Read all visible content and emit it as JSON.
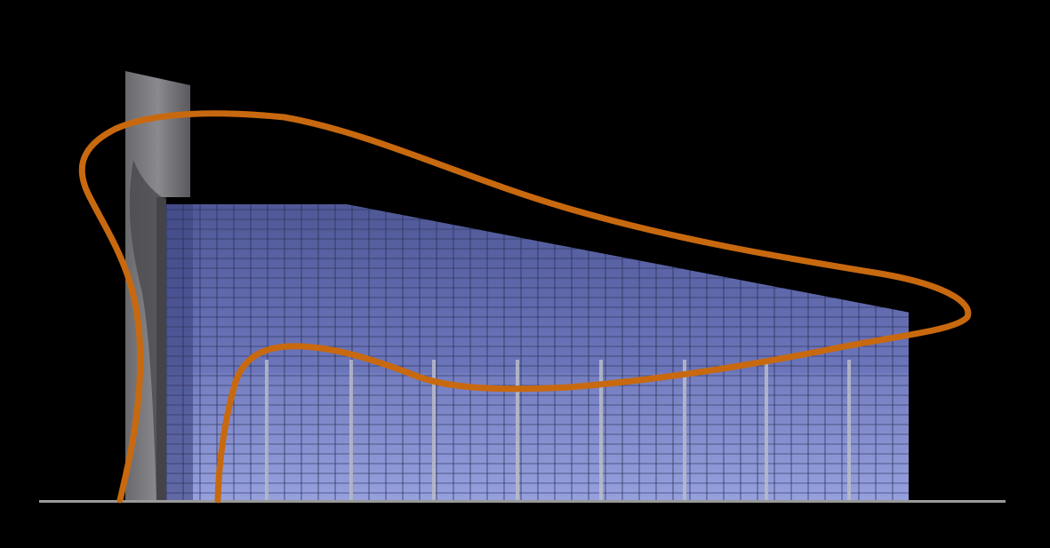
{
  "drawing": {
    "background": "#000000",
    "glass_color": "#5e68b0",
    "glass_light_color": "#8c98d8",
    "mullion_color": "#2a2f55",
    "column_color": "#b8bcc8",
    "tower_color": "#7d7d80",
    "tower_shadow_color": "#3c3c40",
    "curve_color": "#c8690f",
    "ground_color": "#9a9a9a",
    "roof_color": "#000000"
  }
}
